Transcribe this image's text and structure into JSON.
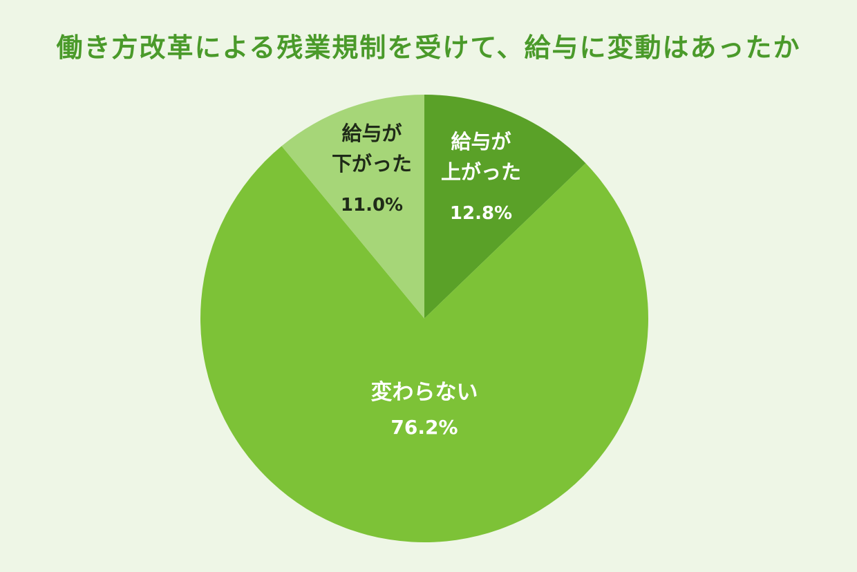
{
  "chart_data": {
    "type": "pie",
    "title": "働き方改革による残業規制を受けて、給与に変動はあったか",
    "slices": [
      {
        "label_lines": [
          "給与が",
          "上がった"
        ],
        "value": 12.8,
        "value_label": "12.8%",
        "color": "#5aa128",
        "text_color": "#ffffff"
      },
      {
        "label_lines": [
          "変わらない"
        ],
        "value": 76.2,
        "value_label": "76.2%",
        "color": "#7dc237",
        "text_color": "#ffffff"
      },
      {
        "label_lines": [
          "給与が",
          "下がった"
        ],
        "value": 11.0,
        "value_label": "11.0%",
        "color": "#a6d678",
        "text_color": "#1f2a18"
      }
    ],
    "start": "12 o'clock",
    "direction": "clockwise",
    "legend": "none"
  },
  "colors": {
    "background": "#eef6e6",
    "title": "#4a9a2a"
  }
}
